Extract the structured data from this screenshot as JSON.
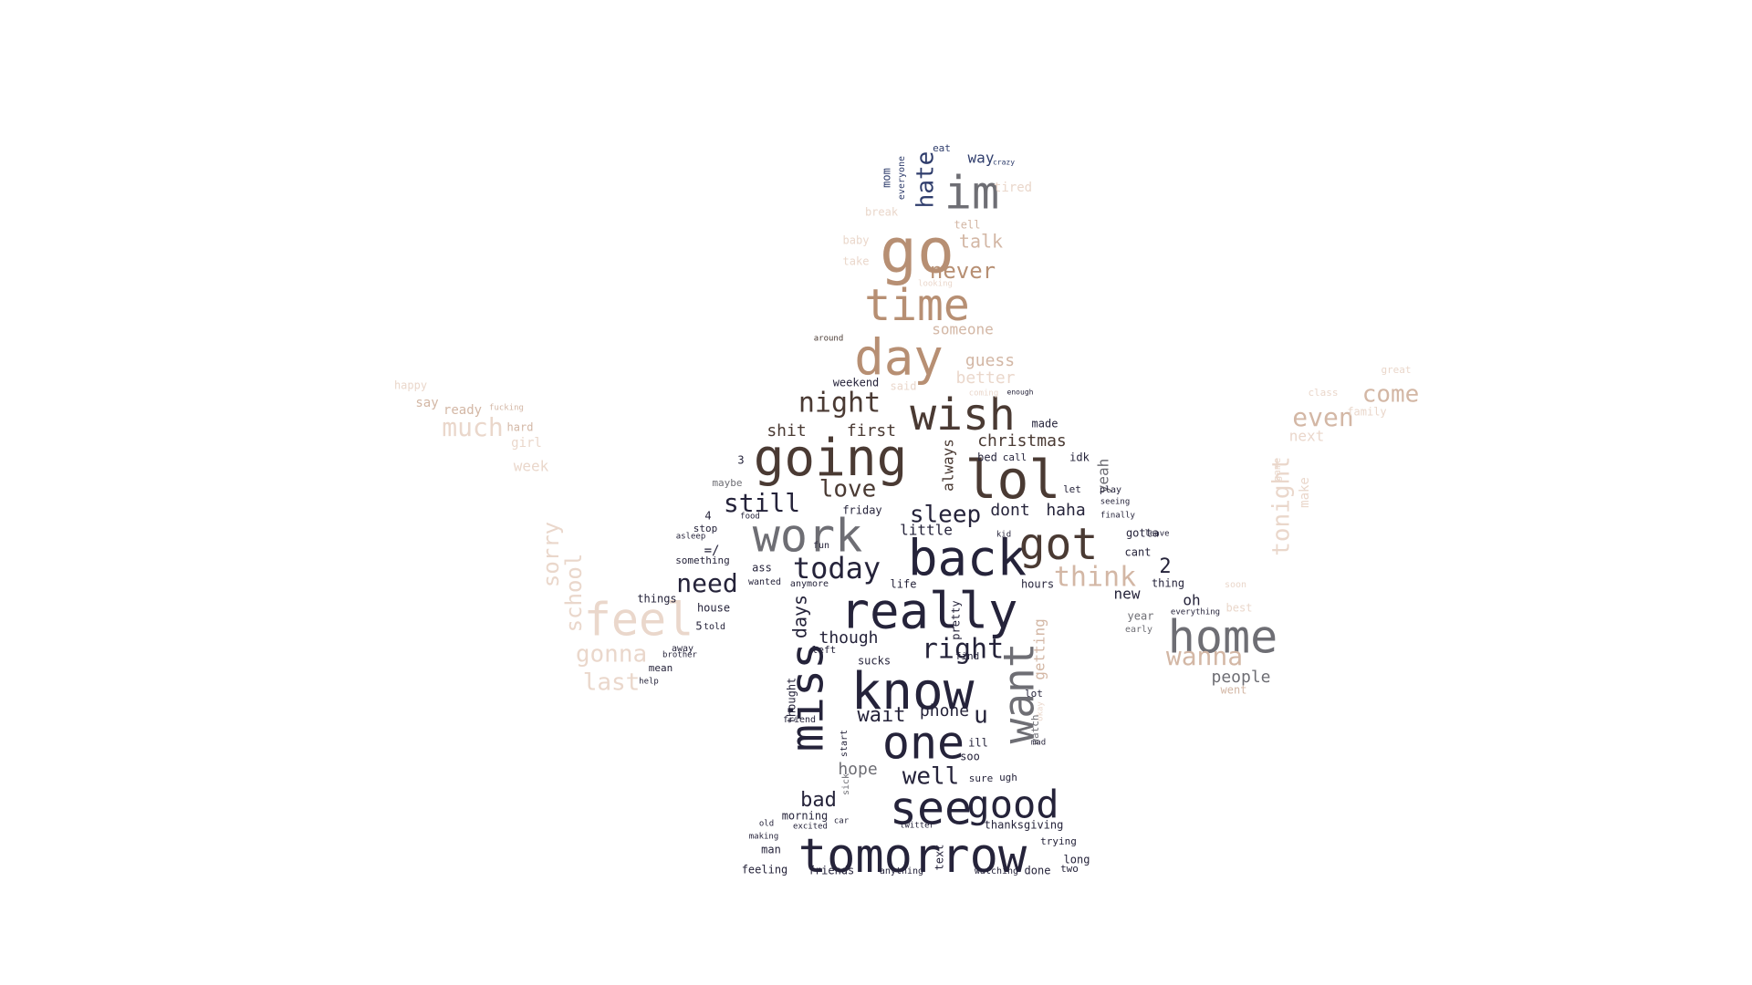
{
  "colors": {
    "background": "#ffffff",
    "darkest": "#25233a",
    "dark_brown": "#4a3a33",
    "gray": "#6e6e74",
    "tan": "#b78f73",
    "light_tan": "#d3b7a5",
    "pale": "#ead7cb",
    "navy": "#2f3d6c"
  },
  "words": [
    {
      "text": "tomorrow",
      "size": 52,
      "color": "darkest"
    },
    {
      "text": "know",
      "size": 56,
      "color": "darkest"
    },
    {
      "text": "really",
      "size": 54,
      "color": "darkest"
    },
    {
      "text": "back",
      "size": 54,
      "color": "darkest"
    },
    {
      "text": "lol",
      "size": 58,
      "color": "dark_brown"
    },
    {
      "text": "going",
      "size": 56,
      "color": "dark_brown"
    },
    {
      "text": "got",
      "size": 48,
      "color": "dark_brown"
    },
    {
      "text": "work",
      "size": 50,
      "color": "gray"
    },
    {
      "text": "home",
      "size": 50,
      "color": "gray"
    },
    {
      "text": "miss",
      "size": 50,
      "color": "darkest",
      "vertical": true
    },
    {
      "text": "want",
      "size": 46,
      "color": "gray",
      "vertical": true
    },
    {
      "text": "one",
      "size": 50,
      "color": "darkest"
    },
    {
      "text": "see",
      "size": 50,
      "color": "darkest"
    },
    {
      "text": "good",
      "size": 42,
      "color": "darkest"
    },
    {
      "text": "wish",
      "size": 48,
      "color": "dark_brown"
    },
    {
      "text": "day",
      "size": 54,
      "color": "tan"
    },
    {
      "text": "time",
      "size": 48,
      "color": "tan"
    },
    {
      "text": "go",
      "size": 68,
      "color": "tan"
    },
    {
      "text": "im",
      "size": 50,
      "color": "gray"
    },
    {
      "text": "feel",
      "size": 50,
      "color": "pale"
    },
    {
      "text": "right",
      "size": 30,
      "color": "darkest"
    },
    {
      "text": "today",
      "size": 32,
      "color": "darkest"
    },
    {
      "text": "think",
      "size": 30,
      "color": "light_tan"
    },
    {
      "text": "still",
      "size": 28,
      "color": "darkest"
    },
    {
      "text": "need",
      "size": 28,
      "color": "darkest"
    },
    {
      "text": "night",
      "size": 30,
      "color": "dark_brown"
    },
    {
      "text": "love",
      "size": 26,
      "color": "dark_brown"
    },
    {
      "text": "sleep",
      "size": 26,
      "color": "darkest"
    },
    {
      "text": "wanna",
      "size": 28,
      "color": "light_tan"
    },
    {
      "text": "even",
      "size": 28,
      "color": "light_tan"
    },
    {
      "text": "come",
      "size": 26,
      "color": "light_tan"
    },
    {
      "text": "much",
      "size": 28,
      "color": "pale"
    },
    {
      "text": "gonna",
      "size": 26,
      "color": "pale"
    },
    {
      "text": "last",
      "size": 26,
      "color": "pale"
    },
    {
      "text": "school",
      "size": 24,
      "color": "pale",
      "vertical": true
    },
    {
      "text": "sorry",
      "size": 24,
      "color": "pale",
      "vertical": true
    },
    {
      "text": "tonight",
      "size": 26,
      "color": "pale",
      "vertical": true
    },
    {
      "text": "hate",
      "size": 26,
      "color": "navy",
      "vertical": true
    },
    {
      "text": "never",
      "size": 24,
      "color": "tan"
    },
    {
      "text": "talk",
      "size": 20,
      "color": "light_tan"
    },
    {
      "text": "someone",
      "size": 16,
      "color": "light_tan"
    },
    {
      "text": "guess",
      "size": 18,
      "color": "light_tan"
    },
    {
      "text": "better",
      "size": 18,
      "color": "pale"
    },
    {
      "text": "well",
      "size": 26,
      "color": "darkest"
    },
    {
      "text": "wait",
      "size": 22,
      "color": "darkest"
    },
    {
      "text": "bad",
      "size": 22,
      "color": "darkest"
    },
    {
      "text": "hope",
      "size": 18,
      "color": "gray"
    },
    {
      "text": "people",
      "size": 18,
      "color": "gray"
    },
    {
      "text": "days",
      "size": 20,
      "color": "darkest",
      "vertical": true
    },
    {
      "text": "though",
      "size": 18,
      "color": "darkest"
    },
    {
      "text": "phone",
      "size": 18,
      "color": "darkest"
    },
    {
      "text": "u",
      "size": 26,
      "color": "darkest"
    },
    {
      "text": "christmas",
      "size": 18,
      "color": "dark_brown"
    },
    {
      "text": "always",
      "size": 16,
      "color": "dark_brown",
      "vertical": true
    },
    {
      "text": "dont",
      "size": 18,
      "color": "darkest"
    },
    {
      "text": "haha",
      "size": 18,
      "color": "darkest"
    },
    {
      "text": "little",
      "size": 16,
      "color": "darkest"
    },
    {
      "text": "shit",
      "size": 18,
      "color": "dark_brown"
    },
    {
      "text": "first",
      "size": 18,
      "color": "dark_brown"
    },
    {
      "text": "way",
      "size": 16,
      "color": "navy"
    },
    {
      "text": "yeah",
      "size": 16,
      "color": "gray",
      "vertical": true
    },
    {
      "text": "getting",
      "size": 16,
      "color": "light_tan",
      "vertical": true
    },
    {
      "text": "new",
      "size": 16,
      "color": "darkest"
    },
    {
      "text": "oh",
      "size": 16,
      "color": "darkest"
    },
    {
      "text": "2",
      "size": 22,
      "color": "darkest"
    },
    {
      "text": "gotta",
      "size": 12,
      "color": "darkest"
    },
    {
      "text": "cant",
      "size": 12,
      "color": "darkest"
    },
    {
      "text": "thing",
      "size": 12,
      "color": "darkest"
    },
    {
      "text": "year",
      "size": 12,
      "color": "gray"
    },
    {
      "text": "idk",
      "size": 12,
      "color": "darkest"
    },
    {
      "text": "made",
      "size": 12,
      "color": "darkest"
    },
    {
      "text": "life",
      "size": 12,
      "color": "darkest"
    },
    {
      "text": "hours",
      "size": 12,
      "color": "darkest"
    },
    {
      "text": "house",
      "size": 12,
      "color": "darkest"
    },
    {
      "text": "things",
      "size": 12,
      "color": "darkest"
    },
    {
      "text": "something",
      "size": 11,
      "color": "darkest"
    },
    {
      "text": "friday",
      "size": 12,
      "color": "darkest"
    },
    {
      "text": "weekend",
      "size": 12,
      "color": "darkest"
    },
    {
      "text": "pretty",
      "size": 12,
      "color": "darkest",
      "vertical": true
    },
    {
      "text": "thought",
      "size": 12,
      "color": "darkest",
      "vertical": true
    },
    {
      "text": "sucks",
      "size": 12,
      "color": "darkest"
    },
    {
      "text": "left",
      "size": 11,
      "color": "darkest"
    },
    {
      "text": "ill",
      "size": 12,
      "color": "darkest"
    },
    {
      "text": "soo",
      "size": 12,
      "color": "darkest"
    },
    {
      "text": "sure",
      "size": 11,
      "color": "darkest"
    },
    {
      "text": "ugh",
      "size": 11,
      "color": "darkest"
    },
    {
      "text": "morning",
      "size": 12,
      "color": "darkest"
    },
    {
      "text": "thanksgiving",
      "size": 12,
      "color": "darkest"
    },
    {
      "text": "trying",
      "size": 11,
      "color": "darkest"
    },
    {
      "text": "long",
      "size": 12,
      "color": "darkest"
    },
    {
      "text": "feeling",
      "size": 12,
      "color": "darkest"
    },
    {
      "text": "friends",
      "size": 12,
      "color": "darkest"
    },
    {
      "text": "anything",
      "size": 10,
      "color": "darkest"
    },
    {
      "text": "watching",
      "size": 10,
      "color": "darkest"
    },
    {
      "text": "done",
      "size": 12,
      "color": "darkest"
    },
    {
      "text": "two",
      "size": 11,
      "color": "darkest"
    },
    {
      "text": "man",
      "size": 12,
      "color": "darkest"
    },
    {
      "text": "text",
      "size": 12,
      "color": "darkest",
      "vertical": true
    },
    {
      "text": "watch",
      "size": 11,
      "color": "gray",
      "vertical": true
    },
    {
      "text": "lot",
      "size": 11,
      "color": "darkest"
    },
    {
      "text": "ass",
      "size": 12,
      "color": "darkest"
    },
    {
      "text": "wanted",
      "size": 10,
      "color": "darkest"
    },
    {
      "text": "stop",
      "size": 11,
      "color": "darkest"
    },
    {
      "text": "maybe",
      "size": 11,
      "color": "gray"
    },
    {
      "text": "told",
      "size": 10,
      "color": "darkest"
    },
    {
      "text": "away",
      "size": 10,
      "color": "darkest"
    },
    {
      "text": "mean",
      "size": 11,
      "color": "darkest"
    },
    {
      "text": "=/",
      "size": 14,
      "color": "darkest"
    },
    {
      "text": "ready",
      "size": 14,
      "color": "light_tan"
    },
    {
      "text": "say",
      "size": 14,
      "color": "light_tan"
    },
    {
      "text": "hard",
      "size": 12,
      "color": "light_tan"
    },
    {
      "text": "girl",
      "size": 14,
      "color": "pale"
    },
    {
      "text": "week",
      "size": 16,
      "color": "pale"
    },
    {
      "text": "happy",
      "size": 12,
      "color": "pale"
    },
    {
      "text": "next",
      "size": 16,
      "color": "pale"
    },
    {
      "text": "family",
      "size": 12,
      "color": "pale"
    },
    {
      "text": "class",
      "size": 11,
      "color": "pale"
    },
    {
      "text": "great",
      "size": 11,
      "color": "pale"
    },
    {
      "text": "best",
      "size": 12,
      "color": "pale"
    },
    {
      "text": "went",
      "size": 12,
      "color": "light_tan"
    },
    {
      "text": "soon",
      "size": 10,
      "color": "pale"
    },
    {
      "text": "make",
      "size": 14,
      "color": "pale",
      "vertical": true
    },
    {
      "text": "game",
      "size": 11,
      "color": "pale",
      "vertical": true
    },
    {
      "text": "tell",
      "size": 12,
      "color": "light_tan"
    },
    {
      "text": "baby",
      "size": 12,
      "color": "pale"
    },
    {
      "text": "take",
      "size": 12,
      "color": "pale"
    },
    {
      "text": "break",
      "size": 12,
      "color": "pale"
    },
    {
      "text": "tired",
      "size": 14,
      "color": "pale"
    },
    {
      "text": "eat",
      "size": 11,
      "color": "navy"
    },
    {
      "text": "mom",
      "size": 12,
      "color": "navy",
      "vertical": true
    },
    {
      "text": "everyone",
      "size": 10,
      "color": "navy",
      "vertical": true
    },
    {
      "text": "said",
      "size": 12,
      "color": "pale"
    },
    {
      "text": "bed",
      "size": 12,
      "color": "darkest"
    },
    {
      "text": "call",
      "size": 11,
      "color": "darkest"
    },
    {
      "text": "let",
      "size": 11,
      "color": "darkest"
    },
    {
      "text": "play",
      "size": 10,
      "color": "darkest"
    },
    {
      "text": "early",
      "size": 10,
      "color": "gray"
    },
    {
      "text": "around",
      "size": 9,
      "color": "dark_brown"
    },
    {
      "text": "finally",
      "size": 9,
      "color": "darkest"
    },
    {
      "text": "anymore",
      "size": 10,
      "color": "darkest"
    },
    {
      "text": "friend",
      "size": 10,
      "color": "darkest"
    },
    {
      "text": "start",
      "size": 10,
      "color": "darkest",
      "vertical": true
    },
    {
      "text": "find",
      "size": 11,
      "color": "darkest"
    },
    {
      "text": "mad",
      "size": 9,
      "color": "darkest"
    },
    {
      "text": "old",
      "size": 9,
      "color": "darkest"
    },
    {
      "text": "excited",
      "size": 9,
      "color": "darkest"
    },
    {
      "text": "making",
      "size": 9,
      "color": "darkest"
    },
    {
      "text": "car",
      "size": 9,
      "color": "darkest"
    },
    {
      "text": "twitter",
      "size": 9,
      "color": "darkest"
    },
    {
      "text": "help",
      "size": 9,
      "color": "darkest"
    },
    {
      "text": "brother",
      "size": 9,
      "color": "darkest"
    },
    {
      "text": "everything",
      "size": 9,
      "color": "darkest"
    },
    {
      "text": "coming",
      "size": 9,
      "color": "pale"
    },
    {
      "text": "enough",
      "size": 8,
      "color": "darkest"
    },
    {
      "text": "looking",
      "size": 9,
      "color": "pale"
    },
    {
      "text": "crazy",
      "size": 8,
      "color": "navy"
    },
    {
      "text": "4",
      "size": 12,
      "color": "darkest"
    },
    {
      "text": "3",
      "size": 12,
      "color": "darkest"
    },
    {
      "text": "5",
      "size": 12,
      "color": "darkest"
    },
    {
      "text": "fun",
      "size": 10,
      "color": "darkest"
    },
    {
      "text": "asleep",
      "size": 9,
      "color": "darkest"
    },
    {
      "text": "food",
      "size": 9,
      "color": "darkest"
    },
    {
      "text": "okay",
      "size": 9,
      "color": "pale",
      "vertical": true
    },
    {
      "text": "sick",
      "size": 10,
      "color": "gray",
      "vertical": true
    },
    {
      "text": "leave",
      "size": 9,
      "color": "darkest"
    },
    {
      "text": "seeing",
      "size": 9,
      "color": "darkest"
    },
    {
      "text": "fucking",
      "size": 9,
      "color": "light_tan"
    },
    {
      "text": "kid",
      "size": 9,
      "color": "darkest"
    }
  ]
}
